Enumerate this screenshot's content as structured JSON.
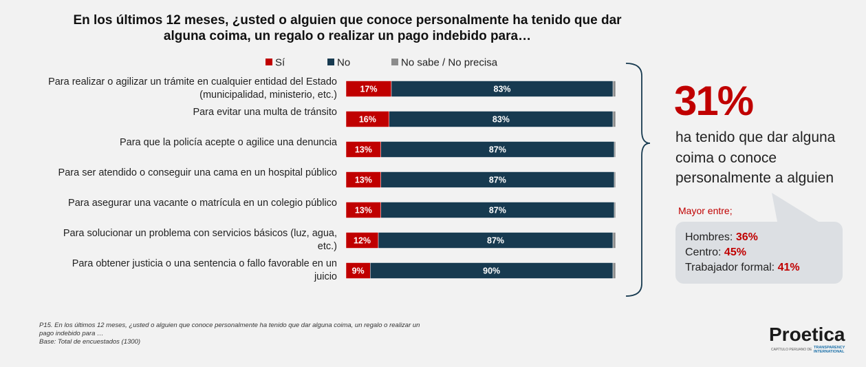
{
  "chart_data": {
    "type": "bar",
    "orientation": "horizontal",
    "stacked": true,
    "title": "En los últimos 12 meses, ¿usted o alguien que conoce personalmente ha tenido que dar alguna coima, un regalo o realizar un pago indebido para…",
    "categories": [
      "Para realizar o agilizar un trámite en cualquier entidad del Estado (municipalidad, ministerio, etc.)",
      "Para evitar una multa de tránsito",
      "Para que la policía acepte o agilice una denuncia",
      "Para ser atendido o conseguir una cama en un hospital público",
      "Para asegurar una vacante o matrícula en un colegio público",
      "Para solucionar un problema con servicios básicos (luz, agua, etc.)",
      "Para obtener justicia o una sentencia o fallo favorable en un juicio"
    ],
    "series": [
      {
        "name": "Sí",
        "color": "#c00000",
        "values": [
          17,
          16,
          13,
          13,
          13,
          12,
          9
        ],
        "value_labels": [
          "17%",
          "16%",
          "13%",
          "13%",
          "13%",
          "12%",
          "9%"
        ]
      },
      {
        "name": "No",
        "color": "#173a50",
        "values": [
          83,
          83,
          87,
          87,
          87,
          87,
          90
        ],
        "value_labels": [
          "83%",
          "83%",
          "87%",
          "87%",
          "87%",
          "87%",
          "90%"
        ]
      },
      {
        "name": "No sabe / No precisa",
        "color": "#8c8c8c",
        "values": [
          1,
          1,
          0.5,
          0.5,
          0.5,
          1,
          1
        ]
      }
    ],
    "legend": "top"
  },
  "callout": {
    "stat": "31%",
    "text": "ha tenido que dar alguna coima o conoce personalmente a alguien",
    "subtitle": "Mayor entre;",
    "breakdown": [
      {
        "label": "Hombres:",
        "value": "36%"
      },
      {
        "label": "Centro:",
        "value": "45%"
      },
      {
        "label": "Trabajador formal:",
        "value": "41%"
      }
    ]
  },
  "footnote": [
    "P15. En los últimos 12 meses, ¿usted o alguien que conoce personalmente ha tenido que dar alguna coima, un regalo o realizar un pago indebido para …",
    "Base: Total de encuestados  (1300)"
  ],
  "logo": {
    "name": "Proetica",
    "tagline": "CAPÍTULO PERUANO DE",
    "partner": "TRANSPARENCY INTERNATIONAL"
  }
}
